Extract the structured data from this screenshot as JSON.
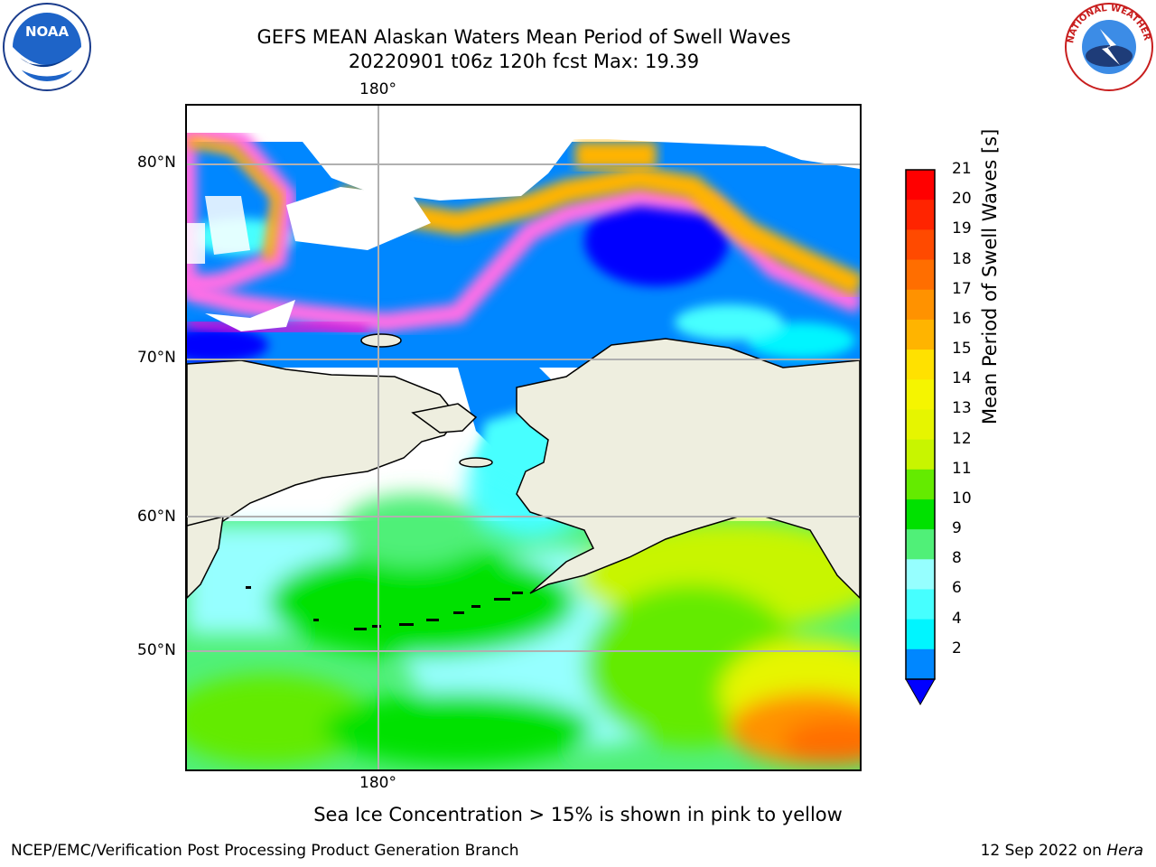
{
  "title": {
    "line1": "GEFS MEAN Alaskan Waters Mean Period of Swell Waves",
    "line2": "20220901 t06z 120h fcst   Max: 19.39"
  },
  "map": {
    "lon_labels": {
      "top": "180°",
      "bottom": "180°"
    },
    "lat_labels": [
      "80°N",
      "70°N",
      "60°N",
      "50°N"
    ],
    "land_color": "#eeeedf",
    "gridline_color": "#b0b0b0"
  },
  "colorbar": {
    "label": "Mean Period of Swell Waves [s]",
    "ticks": [
      "21",
      "20",
      "19",
      "18",
      "17",
      "16",
      "15",
      "14",
      "13",
      "12",
      "11",
      "10",
      "9",
      "8",
      "6",
      "4",
      "2"
    ],
    "colors": [
      "#ff0000",
      "#ff2400",
      "#ff4a00",
      "#ff6e00",
      "#ff9200",
      "#ffb400",
      "#ffe100",
      "#f5f500",
      "#e6f500",
      "#c8f500",
      "#64eb00",
      "#00e100",
      "#50f078",
      "#96ffff",
      "#46ffff",
      "#00f5ff",
      "#0087ff"
    ],
    "extend_color": "#0000ff"
  },
  "note": "Sea Ice Concentration > 15% is shown in pink to yellow",
  "footer": {
    "left": "NCEP/EMC/Verification Post Processing Product Generation Branch",
    "right_date": "12 Sep 2022 on ",
    "right_host": "Hera"
  },
  "logos": {
    "left_text": "NOAA",
    "right_text": "NATIONAL WEATHER SERVICE"
  }
}
